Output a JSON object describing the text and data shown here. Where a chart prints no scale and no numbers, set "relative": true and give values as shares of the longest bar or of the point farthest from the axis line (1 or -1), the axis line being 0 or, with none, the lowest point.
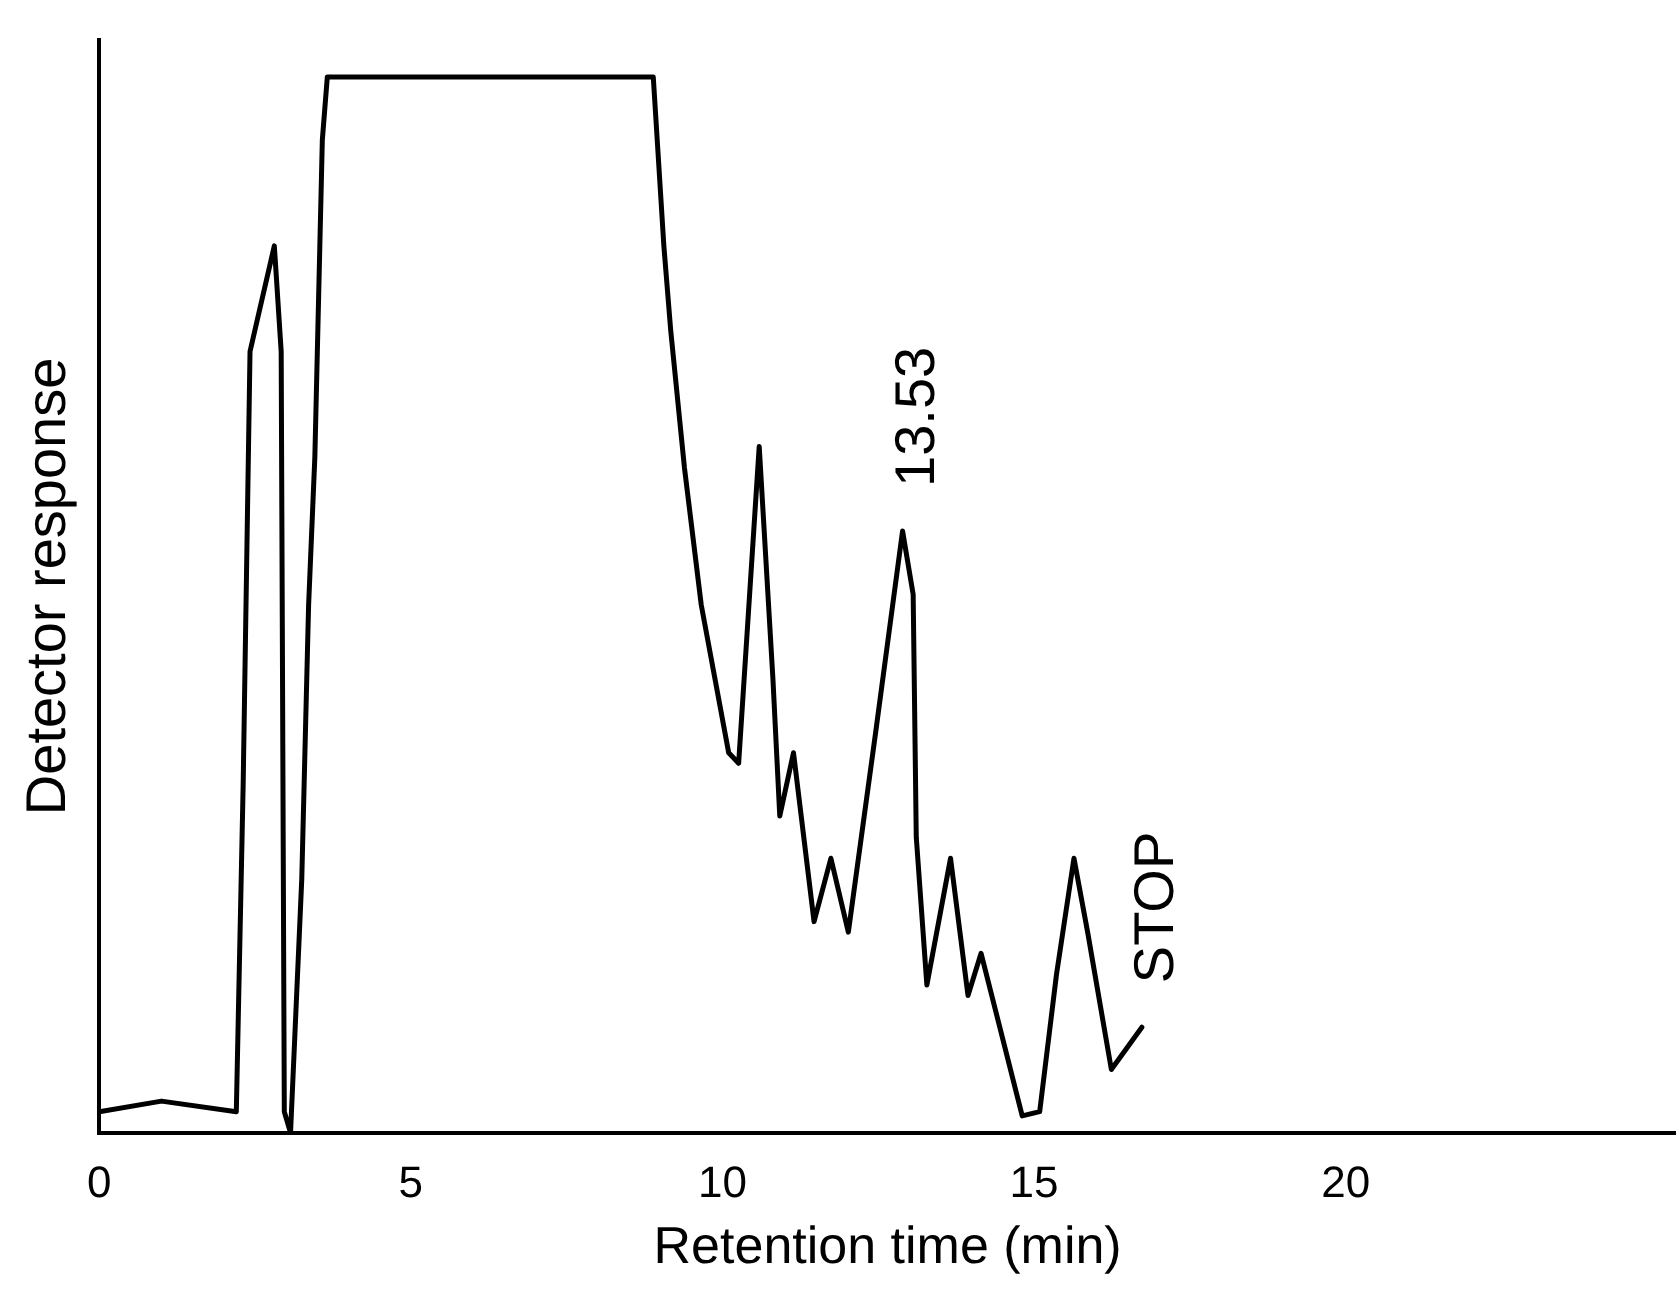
{
  "chart_data": {
    "type": "line",
    "relative": true,
    "xlabel": "Retention time (min)",
    "ylabel": "Detector response",
    "xlim": [
      0,
      25.3
    ],
    "xticks": [
      0,
      5,
      10,
      15,
      20
    ],
    "grid": false,
    "legend": false,
    "marker": "none",
    "line_style": "solid",
    "series": [
      {
        "color": "#000000",
        "x": [
          0,
          1,
          2.2,
          2.31,
          2.42,
          2.81,
          2.92,
          2.97,
          3.07,
          3.25,
          3.36,
          3.46,
          3.58,
          3.66,
          8.89,
          9.06,
          9.17,
          9.39,
          9.66,
          10.1,
          10.26,
          10.59,
          10.81,
          10.92,
          11.14,
          11.47,
          11.74,
          12.02,
          12.46,
          12.89,
          13.06,
          13.11,
          13.28,
          13.66,
          13.94,
          14.15,
          14.81,
          15.09,
          15.36,
          15.64,
          15.86,
          16.24,
          16.73
        ],
        "values": [
          0.02,
          0.03,
          0.02,
          0.33,
          0.74,
          0.84,
          0.74,
          0.02,
          0.0,
          0.24,
          0.5,
          0.64,
          0.94,
          1.0,
          1.0,
          0.84,
          0.76,
          0.63,
          0.5,
          0.36,
          0.35,
          0.65,
          0.43,
          0.3,
          0.36,
          0.2,
          0.26,
          0.19,
          0.38,
          0.57,
          0.51,
          0.28,
          0.14,
          0.26,
          0.13,
          0.17,
          0.016,
          0.02,
          0.15,
          0.26,
          0.19,
          0.06,
          0.1
        ]
      }
    ],
    "annotations": [
      {
        "text": "13.53",
        "x": 12.89,
        "y": 0.57
      },
      {
        "text": "STOP",
        "x": 16.73,
        "y": 0.1
      }
    ]
  }
}
